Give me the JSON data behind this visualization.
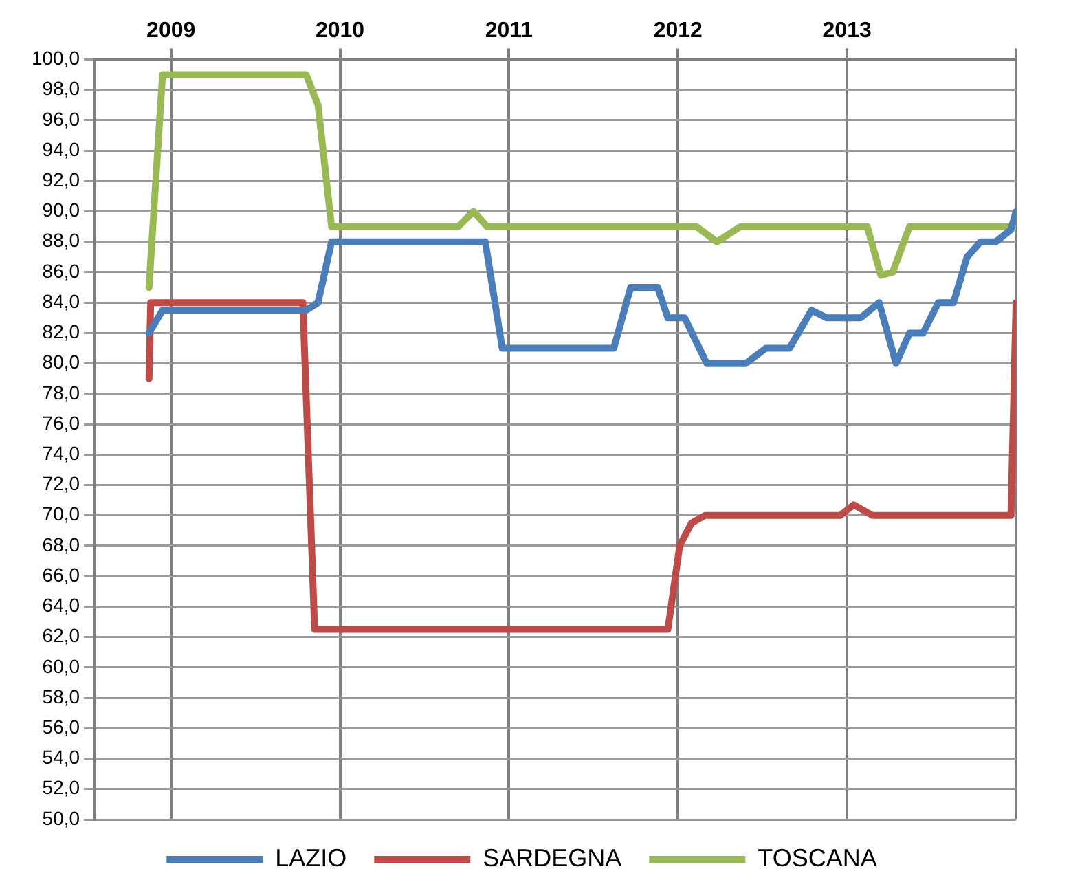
{
  "chart_data": {
    "type": "line",
    "xlim": [
      2008.55,
      2014
    ],
    "xticks": [
      2009,
      2010,
      2011,
      2012,
      2013,
      {
        "value": 2014,
        "label": null
      }
    ],
    "ylim": [
      50,
      100
    ],
    "yticks": [
      {
        "value": 50,
        "label": "50,0"
      },
      {
        "value": 52,
        "label": "52,0"
      },
      {
        "value": 54,
        "label": "54,0"
      },
      {
        "value": 56,
        "label": "56,0"
      },
      {
        "value": 58,
        "label": "58,0"
      },
      {
        "value": 60,
        "label": "60,0"
      },
      {
        "value": 62,
        "label": "62,0"
      },
      {
        "value": 64,
        "label": "64,0"
      },
      {
        "value": 66,
        "label": "66,0"
      },
      {
        "value": 68,
        "label": "68,0"
      },
      {
        "value": 70,
        "label": "70,0"
      },
      {
        "value": 72,
        "label": "72,0"
      },
      {
        "value": 74,
        "label": "74,0"
      },
      {
        "value": 76,
        "label": "76,0"
      },
      {
        "value": 78,
        "label": "78,0"
      },
      {
        "value": 80,
        "label": "80,0"
      },
      {
        "value": 82,
        "label": "82,0"
      },
      {
        "value": 84,
        "label": "84,0"
      },
      {
        "value": 86,
        "label": "86,0"
      },
      {
        "value": 88,
        "label": "88,0"
      },
      {
        "value": 90,
        "label": "90,0"
      },
      {
        "value": 92,
        "label": "92,0"
      },
      {
        "value": 94,
        "label": "94,0"
      },
      {
        "value": 96,
        "label": "96,0"
      },
      {
        "value": 98,
        "label": "98,0"
      },
      {
        "value": 100,
        "label": "100,0"
      }
    ],
    "grid": true,
    "legend": "bottom",
    "marker": "none",
    "line_style": "solid",
    "series": [
      {
        "name": "LAZIO",
        "color": "#4a7ebb",
        "x": [
          2008.87,
          2008.95,
          2009.8,
          2009.87,
          2009.95,
          2010.86,
          2010.96,
          2011.62,
          2011.72,
          2011.88,
          2011.94,
          2012.04,
          2012.17,
          2012.4,
          2012.52,
          2012.66,
          2012.79,
          2012.88,
          2013.08,
          2013.19,
          2013.29,
          2013.37,
          2013.45,
          2013.54,
          2013.63,
          2013.71,
          2013.79,
          2013.88,
          2013.97,
          2014
        ],
        "values": [
          82,
          83.5,
          83.5,
          84,
          88,
          88,
          81,
          81,
          85,
          85,
          83,
          83,
          80,
          80,
          81,
          81,
          83.5,
          83,
          83,
          84,
          80,
          82,
          82,
          84,
          84,
          87,
          88,
          88,
          88.8,
          90
        ]
      },
      {
        "name": "SARDEGNA",
        "color": "#be4b48",
        "x": [
          2008.87,
          2008.88,
          2009.78,
          2009.85,
          2011.94,
          2012.01,
          2012.08,
          2012.16,
          2012.96,
          2013.04,
          2013.15,
          2013.97,
          2014
        ],
        "values": [
          79,
          84,
          84,
          62.5,
          62.5,
          68,
          69.5,
          70,
          70,
          70.7,
          70,
          70,
          84
        ]
      },
      {
        "name": "TOSCANA",
        "color": "#98b954",
        "x": [
          2008.87,
          2008.95,
          2009.8,
          2009.87,
          2009.95,
          2010.7,
          2010.79,
          2010.87,
          2012.11,
          2012.23,
          2012.37,
          2013.12,
          2013.2,
          2013.27,
          2013.37,
          2014
        ],
        "values": [
          85,
          99,
          99,
          97,
          89,
          89,
          90,
          89,
          89,
          88,
          89,
          89,
          85.8,
          86,
          89,
          89
        ]
      }
    ]
  }
}
